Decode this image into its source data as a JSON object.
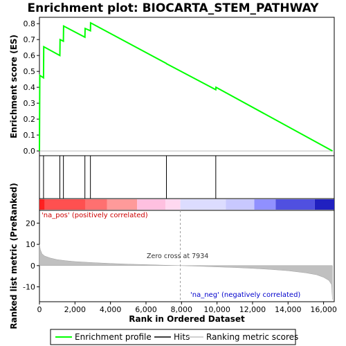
{
  "chart_data": {
    "type": "line",
    "title": "Enrichment plot: BIOCARTA_STEM_PATHWAY",
    "ylabel_top": "Enrichment score (ES)",
    "ylabel_bottom": "Ranked list metric (PreRanked)",
    "xlabel": "Rank in Ordered Dataset",
    "xlim": [
      0,
      16600
    ],
    "x_ticks": [
      0,
      2000,
      4000,
      6000,
      8000,
      10000,
      12000,
      14000,
      16000
    ],
    "x_tick_labels": [
      "0",
      "2,000",
      "4,000",
      "6,000",
      "8,000",
      "10,000",
      "12,000",
      "14,000",
      "16,000"
    ],
    "es_ylim": [
      -0.03,
      0.84
    ],
    "es_ticks": [
      0.0,
      0.1,
      0.2,
      0.3,
      0.4,
      0.5,
      0.6,
      0.7,
      0.8
    ],
    "es_tick_labels": [
      "0.0",
      "0.1",
      "0.2",
      "0.3",
      "0.4",
      "0.5",
      "0.6",
      "0.7",
      "0.8"
    ],
    "metric_ylim": [
      -17,
      26
    ],
    "metric_ticks": [
      20,
      10,
      0,
      -10
    ],
    "metric_tick_labels": [
      "20",
      "10",
      "0",
      "-10"
    ],
    "enrichment_profile": {
      "name": "Enrichment profile",
      "color": "#00ff00",
      "x": [
        0,
        20,
        230,
        240,
        1150,
        1160,
        1350,
        1360,
        2560,
        2570,
        2870,
        2880,
        7150,
        7160,
        9930,
        9940,
        16500
      ],
      "y": [
        0.0,
        0.475,
        0.46,
        0.655,
        0.6,
        0.7,
        0.69,
        0.785,
        0.715,
        0.77,
        0.755,
        0.805,
        0.55,
        0.548,
        0.385,
        0.4,
        0.0
      ]
    },
    "hits": {
      "name": "Hits",
      "color": "#000000",
      "x": [
        230,
        1150,
        1350,
        2560,
        2870,
        7150,
        9930
      ]
    },
    "ranking_metric": {
      "name": "Ranking metric scores",
      "color": "#c0c0c0",
      "x": [
        0,
        50,
        150,
        300,
        600,
        1000,
        1500,
        2000,
        3000,
        4000,
        5000,
        6000,
        7000,
        7934,
        9000,
        10000,
        11000,
        12000,
        13000,
        14000,
        15000,
        15600,
        16000,
        16300,
        16450,
        16500
      ],
      "y": [
        10,
        7.5,
        5.5,
        4.5,
        3.6,
        2.8,
        2.3,
        1.9,
        1.4,
        1.0,
        0.7,
        0.45,
        0.2,
        0.0,
        -0.3,
        -0.6,
        -0.9,
        -1.3,
        -1.8,
        -2.4,
        -3.4,
        -4.3,
        -5.5,
        -7.0,
        -9.0,
        -16.0
      ]
    },
    "zero_cross": 7934,
    "annotations": {
      "pos": "'na_pos' (positively correlated)",
      "neg": "'na_neg' (negatively correlated)",
      "zero_cross": "Zero cross at 7934"
    },
    "heatmap_colors": [
      "#ff2020",
      "#ff5050",
      "#ff7070",
      "#ff9a9a",
      "#ffc0e0",
      "#ffd8f0",
      "#dcdcff",
      "#c8c8ff",
      "#9090ff",
      "#5050e0",
      "#2020c0"
    ],
    "heatmap_bounds": [
      0,
      300,
      2600,
      3800,
      5500,
      7100,
      7934,
      10500,
      12100,
      13300,
      15500,
      16600
    ],
    "legend": [
      "Enrichment profile",
      "Hits",
      "Ranking metric scores"
    ]
  }
}
